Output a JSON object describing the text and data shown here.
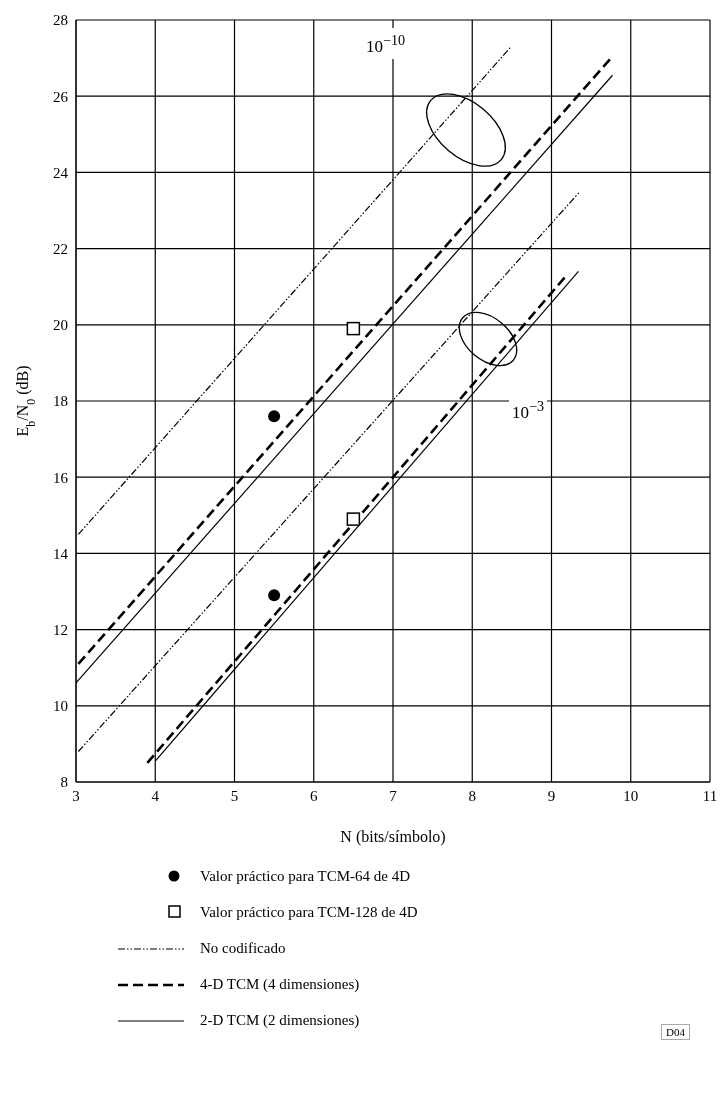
{
  "chart_data": {
    "type": "line",
    "xlabel": "N (bits/símbolo)",
    "ylabel": "E$_{b}$/N$_{0}$ (dB)",
    "xlim": [
      3,
      11
    ],
    "xticks": [
      3,
      4,
      5,
      6,
      7,
      8,
      9,
      10,
      11
    ],
    "ylim": [
      8,
      28
    ],
    "yticks": [
      8,
      10,
      12,
      14,
      16,
      18,
      20,
      22,
      24,
      26,
      28
    ],
    "grid": true,
    "legend": "bottom",
    "series": [
      {
        "type": "scatter",
        "name": "Valor práctico para TCM-64 de 4D",
        "color": "#000000",
        "marker": "circle",
        "x": [
          5.5,
          5.5
        ],
        "values": [
          17.6,
          12.9
        ]
      },
      {
        "type": "scatter",
        "name": "Valor práctico para TCM-128 de 4D",
        "color": "#000000",
        "marker": "square",
        "x": [
          6.5,
          6.5
        ],
        "values": [
          19.9,
          14.9
        ]
      },
      {
        "type": "line",
        "name": "No codificado",
        "color": "#000000",
        "line_style": "dotted",
        "x": [
          3.03,
          8.49
        ],
        "values": [
          14.5,
          27.3
        ]
      },
      {
        "type": "line",
        "name": "4-D TCM (4 dimensiones)",
        "color": "#000000",
        "line_style": "dashed",
        "x": [
          3.03,
          9.75
        ],
        "values": [
          11.1,
          27.0
        ]
      },
      {
        "type": "line",
        "name": "2-D TCM (2 dimensiones)",
        "color": "#000000",
        "line_style": "solid",
        "x": [
          3.0,
          9.77
        ],
        "values": [
          10.6,
          26.55
        ]
      },
      {
        "type": "line",
        "color": "#000000",
        "line_style": "dotted",
        "x": [
          3.03,
          9.36
        ],
        "values": [
          8.8,
          23.5
        ]
      },
      {
        "type": "line",
        "color": "#000000",
        "line_style": "dashed",
        "x": [
          3.9,
          9.17
        ],
        "values": [
          8.5,
          21.25
        ]
      },
      {
        "type": "line",
        "color": "#000000",
        "line_style": "solid",
        "x": [
          4.0,
          9.34
        ],
        "values": [
          8.55,
          21.4
        ]
      }
    ],
    "annotations": [
      "10$^{−10}$",
      "10$^{−3}$",
      "D04"
    ]
  }
}
